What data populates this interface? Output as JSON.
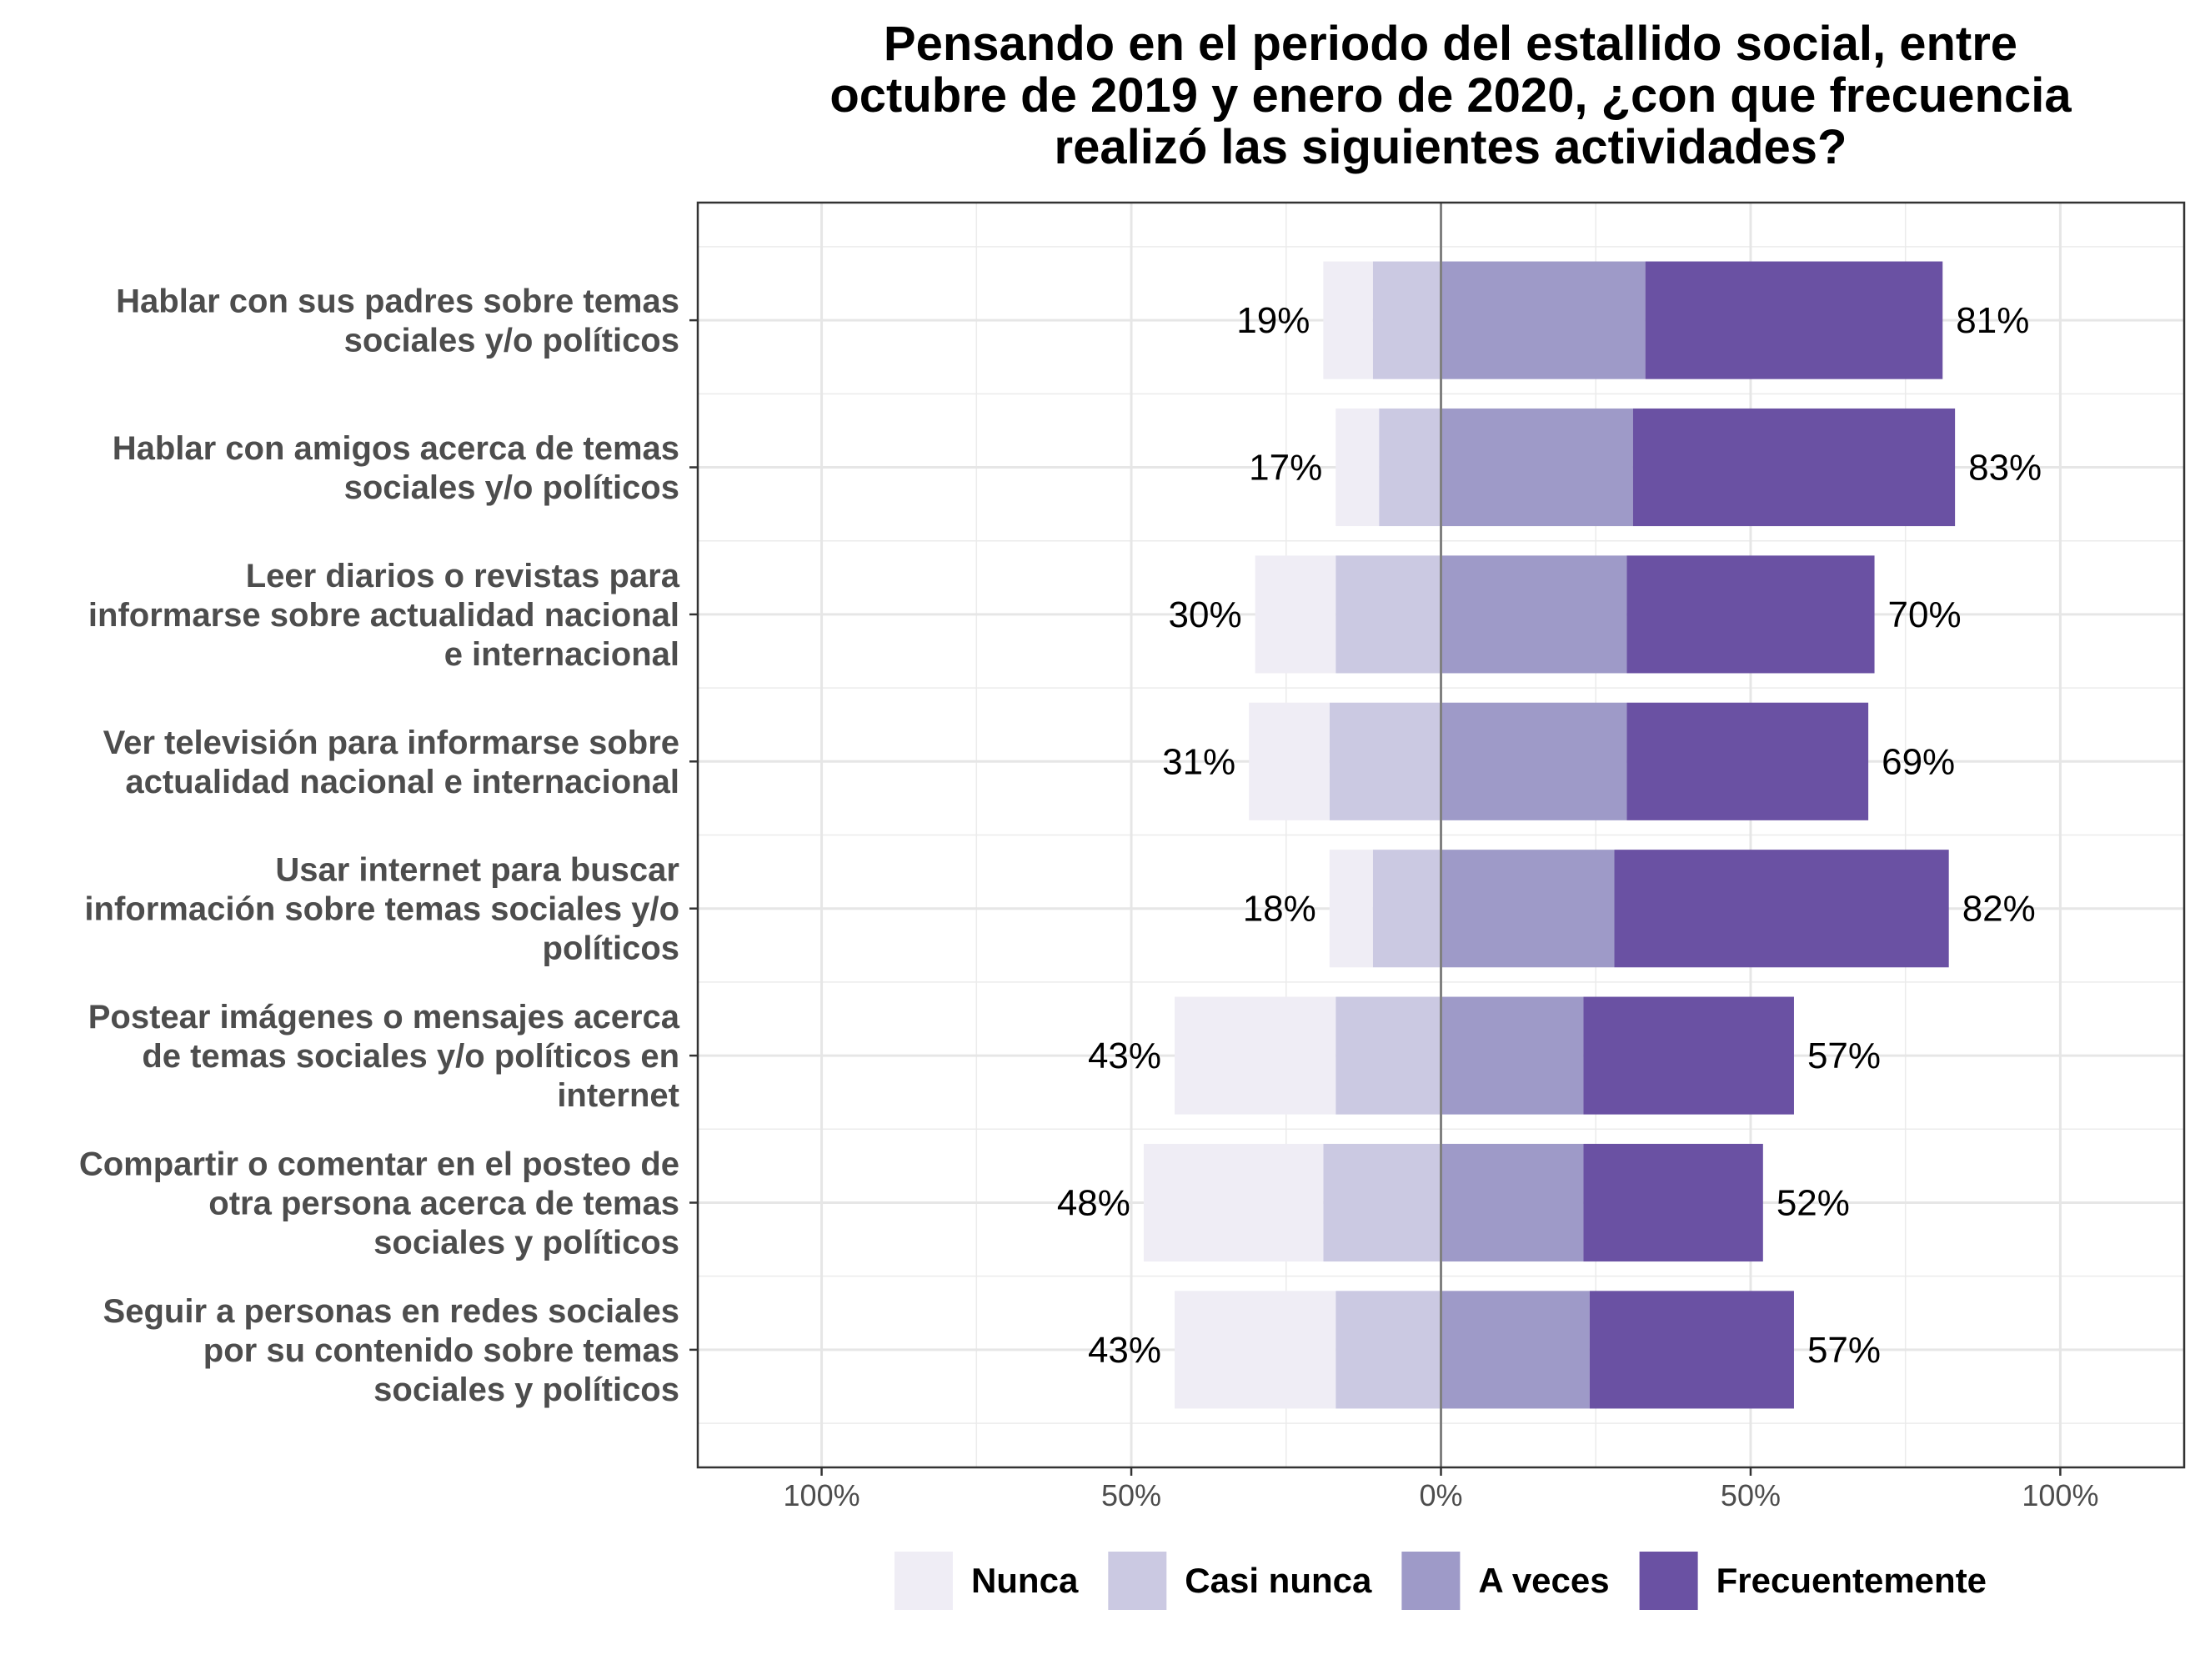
{
  "chart_data": {
    "type": "bar",
    "orientation": "horizontal-diverging",
    "title": "Pensando en el periodo del estallido social, entre octubre de 2019 y enero de 2020, ¿con que frecuencia realizó las siguientes actividades?",
    "title_lines": [
      "Pensando en el periodo del estallido social, entre",
      "octubre de 2019 y enero de 2020, ¿con que frecuencia",
      "realizó las siguientes actividades?"
    ],
    "xlim": [
      -120,
      120
    ],
    "x_ticks": [
      {
        "value": -100,
        "label": "100%"
      },
      {
        "value": -50,
        "label": "50%"
      },
      {
        "value": 0,
        "label": "0%"
      },
      {
        "value": 50,
        "label": "50%"
      },
      {
        "value": 100,
        "label": "100%"
      }
    ],
    "grid": true,
    "legend_position": "bottom",
    "categories": [
      {
        "lines": [
          "Hablar con sus padres sobre temas",
          "sociales y/o políticos"
        ]
      },
      {
        "lines": [
          "Hablar con amigos acerca de temas",
          "sociales y/o políticos"
        ]
      },
      {
        "lines": [
          "Leer diarios o revistas para",
          "informarse sobre actualidad nacional",
          "e internacional"
        ]
      },
      {
        "lines": [
          "Ver televisión para informarse sobre",
          "actualidad nacional e internacional"
        ]
      },
      {
        "lines": [
          "Usar internet para buscar",
          "información sobre temas sociales y/o",
          "políticos"
        ]
      },
      {
        "lines": [
          "Postear imágenes o mensajes acerca",
          "de temas sociales y/o políticos en",
          "internet"
        ]
      },
      {
        "lines": [
          "Compartir o comentar en el posteo de",
          "otra persona acerca de temas",
          "sociales y políticos"
        ]
      },
      {
        "lines": [
          "Seguir a personas en redes sociales",
          "por su contenido sobre temas",
          "sociales y políticos"
        ]
      }
    ],
    "series": [
      {
        "name": "Nunca",
        "side": "negative",
        "color": "#efedf5",
        "values": [
          8,
          7,
          13,
          13,
          7,
          26,
          29,
          26
        ]
      },
      {
        "name": "Casi nunca",
        "side": "negative",
        "color": "#cbc9e2",
        "values": [
          11,
          10,
          17,
          18,
          11,
          17,
          19,
          17
        ]
      },
      {
        "name": "A veces",
        "side": "positive",
        "color": "#9e9ac8",
        "values": [
          33,
          31,
          30,
          30,
          28,
          23,
          23,
          24
        ]
      },
      {
        "name": "Frecuentemente",
        "side": "positive",
        "color": "#6a51a3",
        "values": [
          48,
          52,
          40,
          39,
          54,
          34,
          29,
          33
        ]
      }
    ],
    "negative_totals": [
      "19%",
      "17%",
      "30%",
      "31%",
      "18%",
      "43%",
      "48%",
      "43%"
    ],
    "positive_totals": [
      "81%",
      "83%",
      "70%",
      "69%",
      "82%",
      "57%",
      "52%",
      "57%"
    ]
  }
}
